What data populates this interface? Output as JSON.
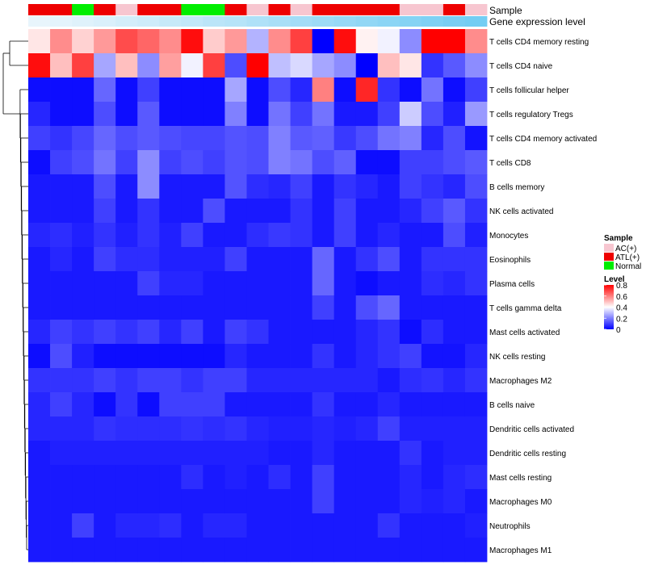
{
  "chart_data": {
    "type": "heatmap",
    "annotation_labels": {
      "sample": "Sample",
      "gene_expression": "Gene expression level"
    },
    "legend": {
      "sample_title": "Sample",
      "sample_entries": [
        {
          "label": "AC(+)",
          "color": "#f7c6d0"
        },
        {
          "label": "ATL(+)",
          "color": "#ee0000"
        },
        {
          "label": "Normal",
          "color": "#00ee00"
        }
      ],
      "level_title": "Level",
      "level_ticks": [
        "0.8",
        "0.6",
        "0.4",
        "0.2",
        "0"
      ],
      "level_min": 0,
      "level_max": 0.8
    },
    "colorscale": {
      "low": "#0000ff",
      "mid": "#ffffff",
      "high": "#ff0000",
      "mid_value": 0.4
    },
    "sample_groups": [
      "ATL(+)",
      "ATL(+)",
      "Normal",
      "ATL(+)",
      "AC(+)",
      "ATL(+)",
      "ATL(+)",
      "Normal",
      "Normal",
      "ATL(+)",
      "AC(+)",
      "ATL(+)",
      "AC(+)",
      "ATL(+)",
      "ATL(+)",
      "ATL(+)",
      "ATL(+)",
      "AC(+)",
      "AC(+)",
      "ATL(+)",
      "AC(+)"
    ],
    "gene_expression_level": [
      0.02,
      0.05,
      0.09,
      0.13,
      0.18,
      0.22,
      0.27,
      0.31,
      0.36,
      0.4,
      0.45,
      0.5,
      0.54,
      0.59,
      0.63,
      0.68,
      0.72,
      0.77,
      0.81,
      0.86,
      0.9
    ],
    "rows": [
      "T cells CD4 memory resting",
      "T cells CD4 naive",
      "T cells follicular helper",
      "T cells regulatory  Tregs",
      "T cells CD4 memory activated",
      "T cells CD8",
      "B cells memory",
      "NK cells activated",
      "Monocytes",
      "Eosinophils",
      "Plasma cells",
      "T cells gamma delta",
      "Mast cells activated",
      "NK cells resting",
      "Macrophages M2",
      "B cells naive",
      "Dendritic cells activated",
      "Dendritic cells resting",
      "Mast cells resting",
      "Macrophages M0",
      "Neutrophils",
      "Macrophages M1"
    ],
    "values": [
      [
        0.44,
        0.58,
        0.47,
        0.56,
        0.68,
        0.64,
        0.58,
        0.78,
        0.48,
        0.56,
        0.28,
        0.58,
        0.7,
        0.0,
        0.78,
        0.42,
        0.38,
        0.22,
        0.8,
        0.8,
        0.58
      ],
      [
        0.78,
        0.5,
        0.7,
        0.26,
        0.5,
        0.22,
        0.55,
        0.38,
        0.7,
        0.12,
        0.8,
        0.3,
        0.34,
        0.26,
        0.22,
        0.0,
        0.5,
        0.44,
        0.08,
        0.14,
        0.22
      ],
      [
        0.02,
        0.02,
        0.02,
        0.16,
        0.02,
        0.1,
        0.02,
        0.02,
        0.02,
        0.26,
        0.02,
        0.12,
        0.06,
        0.6,
        0.02,
        0.74,
        0.08,
        0.02,
        0.18,
        0.02,
        0.1
      ],
      [
        0.06,
        0.02,
        0.02,
        0.12,
        0.02,
        0.14,
        0.02,
        0.02,
        0.02,
        0.2,
        0.02,
        0.18,
        0.1,
        0.18,
        0.04,
        0.04,
        0.1,
        0.32,
        0.12,
        0.05,
        0.24
      ],
      [
        0.1,
        0.08,
        0.11,
        0.16,
        0.12,
        0.14,
        0.12,
        0.11,
        0.11,
        0.13,
        0.12,
        0.2,
        0.14,
        0.15,
        0.09,
        0.12,
        0.18,
        0.2,
        0.06,
        0.12,
        0.03
      ],
      [
        0.02,
        0.1,
        0.12,
        0.18,
        0.1,
        0.22,
        0.1,
        0.12,
        0.1,
        0.13,
        0.12,
        0.2,
        0.18,
        0.12,
        0.15,
        0.02,
        0.02,
        0.1,
        0.1,
        0.12,
        0.14
      ],
      [
        0.04,
        0.04,
        0.04,
        0.12,
        0.04,
        0.22,
        0.04,
        0.04,
        0.04,
        0.13,
        0.07,
        0.06,
        0.1,
        0.04,
        0.08,
        0.06,
        0.04,
        0.1,
        0.08,
        0.06,
        0.12
      ],
      [
        0.04,
        0.04,
        0.04,
        0.1,
        0.04,
        0.08,
        0.04,
        0.04,
        0.12,
        0.04,
        0.04,
        0.04,
        0.08,
        0.04,
        0.1,
        0.04,
        0.04,
        0.06,
        0.1,
        0.14,
        0.08
      ],
      [
        0.06,
        0.07,
        0.05,
        0.08,
        0.05,
        0.08,
        0.05,
        0.1,
        0.04,
        0.04,
        0.07,
        0.09,
        0.08,
        0.04,
        0.1,
        0.04,
        0.06,
        0.04,
        0.04,
        0.12,
        0.05
      ],
      [
        0.04,
        0.06,
        0.04,
        0.1,
        0.07,
        0.07,
        0.05,
        0.05,
        0.05,
        0.1,
        0.04,
        0.04,
        0.04,
        0.16,
        0.04,
        0.08,
        0.12,
        0.04,
        0.08,
        0.08,
        0.08
      ],
      [
        0.04,
        0.04,
        0.04,
        0.04,
        0.04,
        0.1,
        0.06,
        0.06,
        0.04,
        0.04,
        0.04,
        0.04,
        0.04,
        0.16,
        0.04,
        0.02,
        0.04,
        0.04,
        0.07,
        0.06,
        0.08
      ],
      [
        0.04,
        0.04,
        0.04,
        0.04,
        0.04,
        0.04,
        0.04,
        0.04,
        0.04,
        0.04,
        0.04,
        0.04,
        0.04,
        0.1,
        0.04,
        0.12,
        0.16,
        0.04,
        0.04,
        0.04,
        0.04
      ],
      [
        0.06,
        0.1,
        0.08,
        0.1,
        0.08,
        0.1,
        0.06,
        0.1,
        0.04,
        0.1,
        0.08,
        0.04,
        0.04,
        0.04,
        0.04,
        0.06,
        0.08,
        0.02,
        0.07,
        0.04,
        0.04
      ],
      [
        0.02,
        0.12,
        0.05,
        0.02,
        0.02,
        0.02,
        0.02,
        0.02,
        0.02,
        0.06,
        0.04,
        0.04,
        0.04,
        0.08,
        0.04,
        0.06,
        0.08,
        0.1,
        0.03,
        0.03,
        0.06
      ],
      [
        0.08,
        0.08,
        0.08,
        0.1,
        0.08,
        0.1,
        0.1,
        0.08,
        0.1,
        0.1,
        0.06,
        0.06,
        0.06,
        0.06,
        0.06,
        0.06,
        0.04,
        0.07,
        0.08,
        0.06,
        0.08
      ],
      [
        0.06,
        0.1,
        0.06,
        0.02,
        0.08,
        0.02,
        0.1,
        0.1,
        0.1,
        0.04,
        0.04,
        0.04,
        0.04,
        0.08,
        0.04,
        0.04,
        0.06,
        0.04,
        0.04,
        0.04,
        0.04
      ],
      [
        0.06,
        0.06,
        0.06,
        0.08,
        0.07,
        0.07,
        0.07,
        0.08,
        0.07,
        0.08,
        0.06,
        0.05,
        0.05,
        0.06,
        0.05,
        0.06,
        0.1,
        0.05,
        0.05,
        0.05,
        0.05
      ],
      [
        0.04,
        0.05,
        0.05,
        0.05,
        0.05,
        0.05,
        0.05,
        0.05,
        0.05,
        0.05,
        0.05,
        0.04,
        0.04,
        0.06,
        0.04,
        0.04,
        0.04,
        0.08,
        0.04,
        0.05,
        0.05
      ],
      [
        0.04,
        0.04,
        0.04,
        0.04,
        0.04,
        0.04,
        0.04,
        0.07,
        0.04,
        0.05,
        0.04,
        0.07,
        0.04,
        0.1,
        0.04,
        0.04,
        0.04,
        0.06,
        0.04,
        0.06,
        0.07
      ],
      [
        0.04,
        0.04,
        0.04,
        0.04,
        0.04,
        0.04,
        0.04,
        0.04,
        0.04,
        0.04,
        0.04,
        0.04,
        0.04,
        0.1,
        0.04,
        0.04,
        0.04,
        0.06,
        0.05,
        0.06,
        0.04
      ],
      [
        0.04,
        0.04,
        0.1,
        0.04,
        0.06,
        0.06,
        0.07,
        0.04,
        0.06,
        0.06,
        0.04,
        0.04,
        0.04,
        0.04,
        0.04,
        0.04,
        0.08,
        0.04,
        0.04,
        0.04,
        0.05
      ],
      [
        0.04,
        0.04,
        0.04,
        0.04,
        0.04,
        0.04,
        0.04,
        0.04,
        0.04,
        0.04,
        0.04,
        0.04,
        0.04,
        0.04,
        0.04,
        0.04,
        0.04,
        0.04,
        0.04,
        0.04,
        0.04
      ]
    ]
  }
}
